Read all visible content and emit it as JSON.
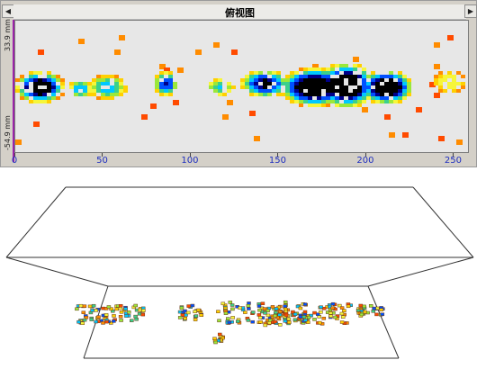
{
  "top_view": {
    "title": "俯视图",
    "scroll_left_icon": "arrow-left-icon",
    "scroll_right_icon": "arrow-right-icon",
    "y_labels": {
      "top": "33.9 mm",
      "bottom": "-54.9 mm"
    },
    "x_ticks": [
      "0",
      "50",
      "100",
      "150",
      "200",
      "250"
    ],
    "x_tick_values": [
      0,
      50,
      100,
      150,
      200,
      250
    ],
    "x_range": [
      0,
      258
    ],
    "colors": {
      "background": "#e7e7e7",
      "scale": [
        "#ff4b00",
        "#ff8c00",
        "#ffd000",
        "#f6f63a",
        "#9be83a",
        "#3bd08c",
        "#00c8ff",
        "#0050ff",
        "#00008a",
        "#000000"
      ],
      "marker": "#9b22a9"
    }
  },
  "view_3d": {
    "line_color": "#333333"
  }
}
